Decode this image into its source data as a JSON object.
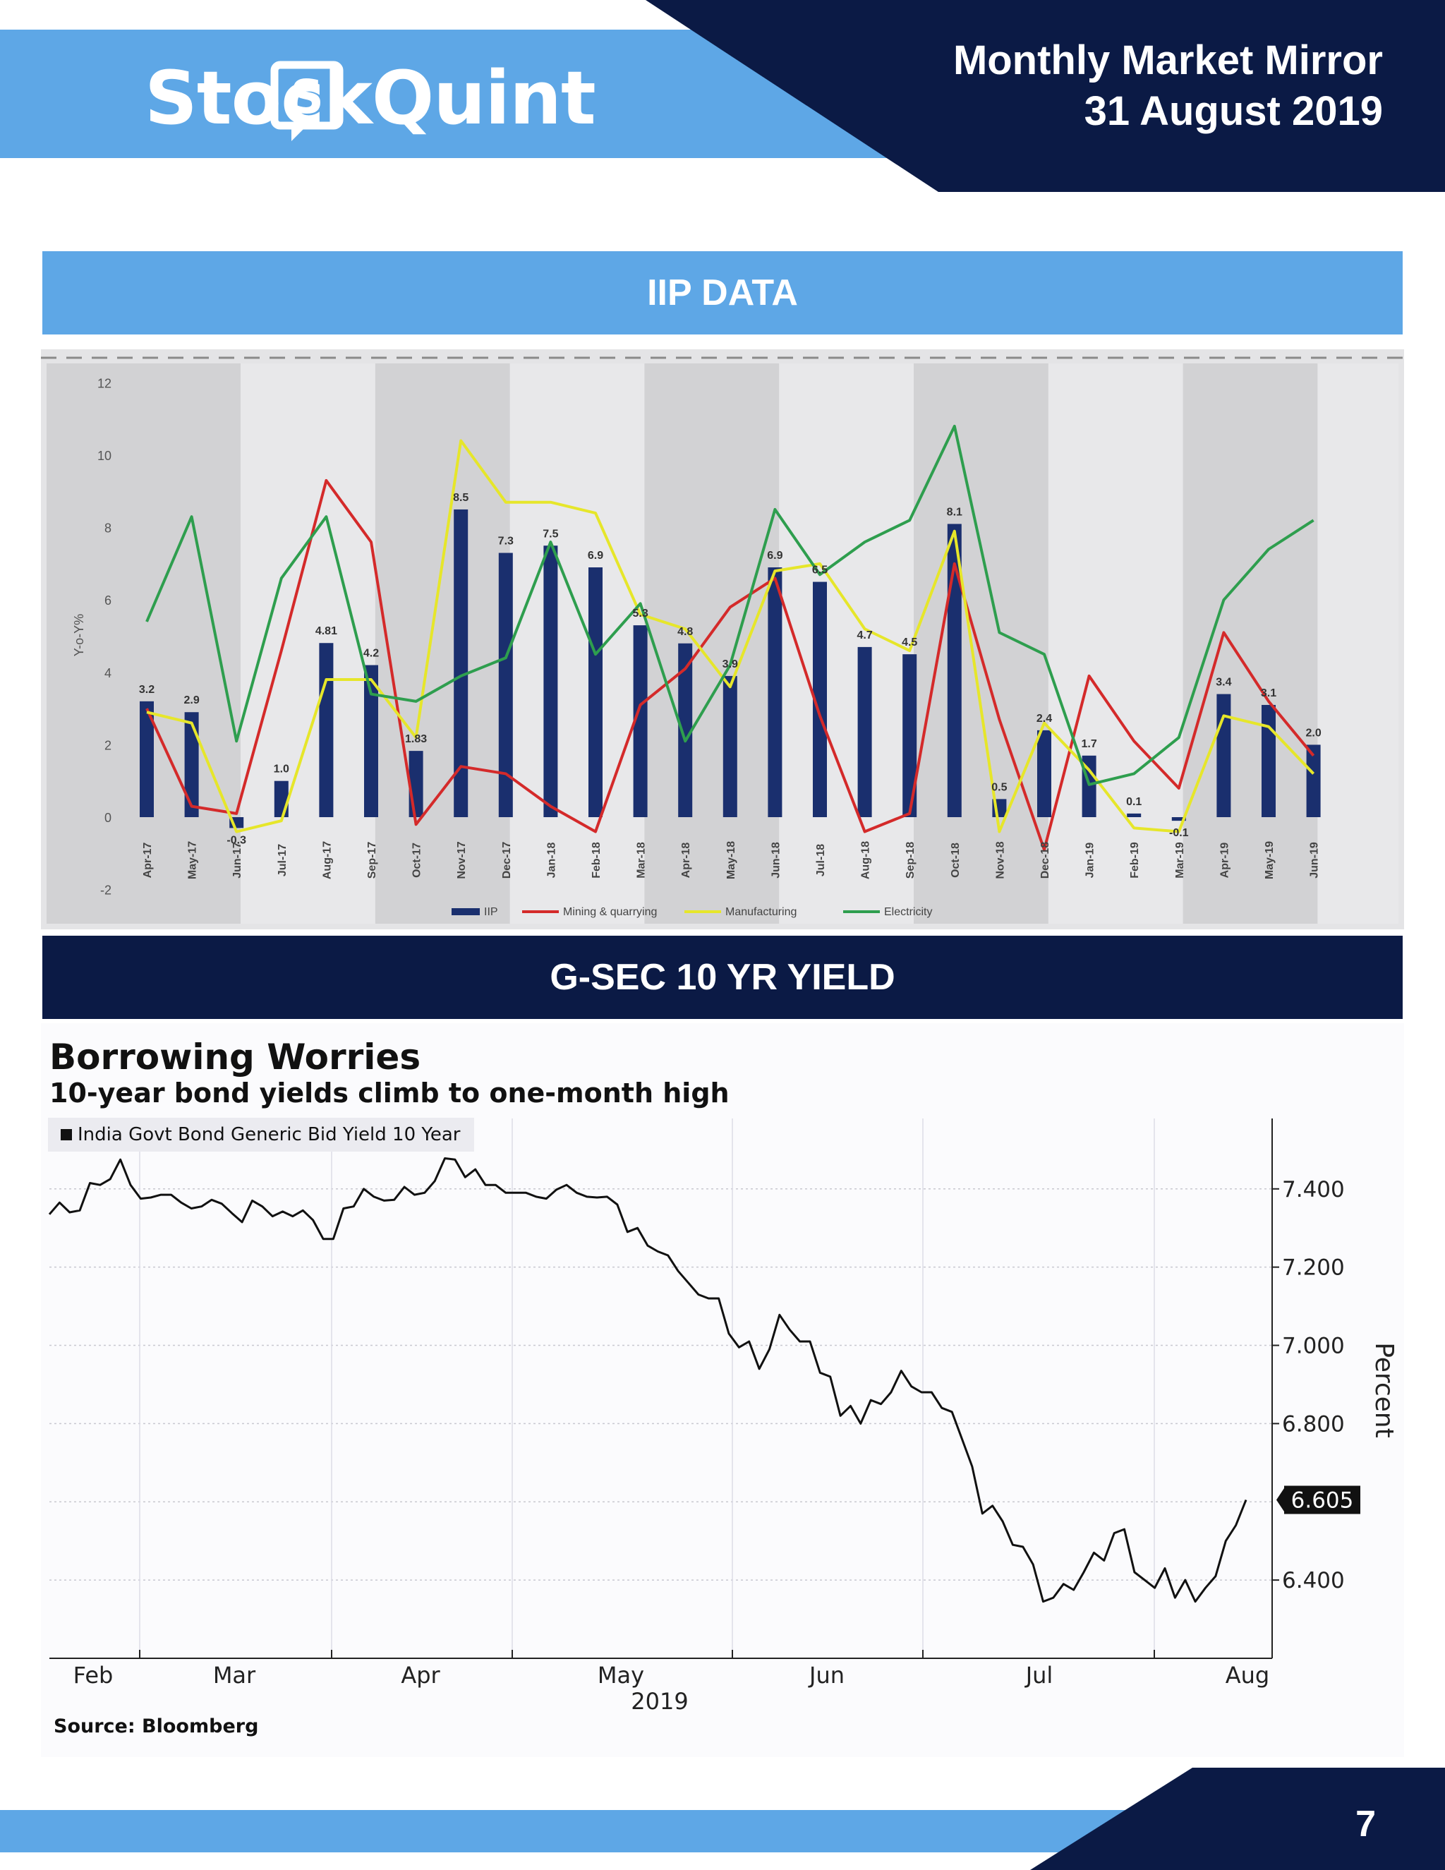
{
  "header": {
    "brand": "StockQuint",
    "report_title": "Monthly Market Mirror",
    "report_date": "31 August 2019",
    "colors": {
      "light_blue": "#5ea7e6",
      "navy": "#0b1a45"
    }
  },
  "sections": {
    "iip_title": "IIP DATA",
    "gsec_title": "G-SEC 10 YR YIELD"
  },
  "page_number": "7",
  "chart_data": [
    {
      "type": "bar",
      "title": "",
      "xlabel": "",
      "ylabel": "Y-o-Y%",
      "ylim": [
        -2,
        12
      ],
      "yticks": [
        12,
        10,
        8,
        6,
        4,
        2,
        0,
        -2
      ],
      "grid": false,
      "legend": "bottom",
      "categories": [
        "Apr-17",
        "May-17",
        "Jun-17",
        "Jul-17",
        "Aug-17",
        "Sep-17",
        "Oct-17",
        "Nov-17",
        "Dec-17",
        "Jan-18",
        "Feb-18",
        "Mar-18",
        "Apr-18",
        "May-18",
        "Jun-18",
        "Jul-18",
        "Aug-18",
        "Sep-18",
        "Oct-18",
        "Nov-18",
        "Dec-18",
        "Jan-19",
        "Feb-19",
        "Mar-19",
        "Apr-19",
        "May-19",
        "Jun-19"
      ],
      "series": [
        {
          "name": "IIP",
          "kind": "bar",
          "color": "#1a2f6e",
          "values": [
            3.2,
            2.9,
            -0.3,
            1.0,
            4.81,
            4.2,
            1.83,
            8.5,
            7.3,
            7.5,
            6.9,
            5.3,
            4.8,
            3.9,
            6.9,
            6.5,
            4.7,
            4.5,
            8.1,
            0.5,
            2.4,
            1.7,
            0.1,
            -0.1,
            3.4,
            3.1,
            2.0
          ],
          "labels": [
            "3.2",
            "2.9",
            "-0.3",
            "1.0",
            "4.81",
            "4.2",
            "1.83",
            "8.5",
            "7.3",
            "7.5",
            "6.9",
            "5.3",
            "4.8",
            "3.9",
            "6.9",
            "6.5",
            "4.7",
            "4.5",
            "8.1",
            "0.5",
            "2.4",
            "1.7",
            "0.1",
            "-0.1",
            "3.4",
            "3.1",
            "2.0"
          ]
        },
        {
          "name": "Mining & quarrying",
          "kind": "line",
          "color": "#d42a2a",
          "values": [
            3.0,
            0.3,
            0.1,
            4.6,
            9.3,
            7.6,
            -0.2,
            1.4,
            1.2,
            0.3,
            -0.4,
            3.1,
            4.1,
            5.8,
            6.6,
            2.8,
            -0.4,
            0.1,
            7.0,
            2.7,
            -0.9,
            3.9,
            2.1,
            0.8,
            5.1,
            3.2,
            1.7
          ]
        },
        {
          "name": "Manufacturing",
          "kind": "line",
          "color": "#e6e62a",
          "values": [
            2.9,
            2.6,
            -0.4,
            -0.1,
            3.8,
            3.8,
            2.2,
            10.4,
            8.7,
            8.7,
            8.4,
            5.6,
            5.2,
            3.6,
            6.8,
            7.0,
            5.2,
            4.6,
            7.9,
            -0.4,
            2.6,
            1.3,
            -0.3,
            -0.4,
            2.8,
            2.5,
            1.2
          ]
        },
        {
          "name": "Electricity",
          "kind": "line",
          "color": "#2e9e4e",
          "values": [
            5.4,
            8.3,
            2.1,
            6.6,
            8.3,
            3.4,
            3.2,
            3.9,
            4.4,
            7.6,
            4.5,
            5.9,
            2.1,
            4.2,
            8.5,
            6.7,
            7.6,
            8.2,
            10.8,
            5.1,
            4.5,
            0.9,
            1.2,
            2.2,
            6.0,
            7.4,
            8.2
          ]
        }
      ]
    },
    {
      "type": "line",
      "title": "Borrowing Worries",
      "subtitle": "10-year bond yields climb to one-month high",
      "legend_label": "India Govt Bond Generic Bid Yield 10 Year",
      "legend": "top-left",
      "ylabel": "Percent",
      "ylim": [
        6.2,
        7.58
      ],
      "yticks": [
        "7.400",
        "7.200",
        "7.000",
        "6.800",
        "6.400"
      ],
      "last_value_label": "6.605",
      "xtick_labels": [
        "Feb",
        "Mar",
        "Apr",
        "May",
        "Jun",
        "Jul",
        "Aug"
      ],
      "year_label": "2019",
      "source": "Source: Bloomberg",
      "grid": true,
      "values": [
        7.335,
        7.365,
        7.34,
        7.345,
        7.415,
        7.41,
        7.425,
        7.475,
        7.41,
        7.375,
        7.378,
        7.385,
        7.385,
        7.365,
        7.35,
        7.355,
        7.372,
        7.362,
        7.338,
        7.315,
        7.37,
        7.355,
        7.33,
        7.342,
        7.33,
        7.345,
        7.32,
        7.272,
        7.272,
        7.35,
        7.355,
        7.4,
        7.38,
        7.37,
        7.372,
        7.405,
        7.385,
        7.39,
        7.42,
        7.478,
        7.475,
        7.43,
        7.45,
        7.41,
        7.41,
        7.39,
        7.39,
        7.39,
        7.38,
        7.375,
        7.398,
        7.41,
        7.39,
        7.38,
        7.378,
        7.38,
        7.36,
        7.29,
        7.3,
        7.255,
        7.24,
        7.23,
        7.19,
        7.16,
        7.13,
        7.12,
        7.12,
        7.03,
        6.995,
        7.01,
        6.94,
        6.99,
        7.078,
        7.04,
        7.01,
        7.01,
        6.93,
        6.92,
        6.82,
        6.845,
        6.8,
        6.86,
        6.85,
        6.88,
        6.935,
        6.895,
        6.88,
        6.88,
        6.84,
        6.83,
        6.76,
        6.69,
        6.57,
        6.59,
        6.55,
        6.49,
        6.485,
        6.44,
        6.345,
        6.355,
        6.39,
        6.375,
        6.42,
        6.47,
        6.45,
        6.52,
        6.53,
        6.42,
        6.4,
        6.38,
        6.43,
        6.355,
        6.4,
        6.345,
        6.38,
        6.41,
        6.5,
        6.54,
        6.605
      ]
    }
  ]
}
